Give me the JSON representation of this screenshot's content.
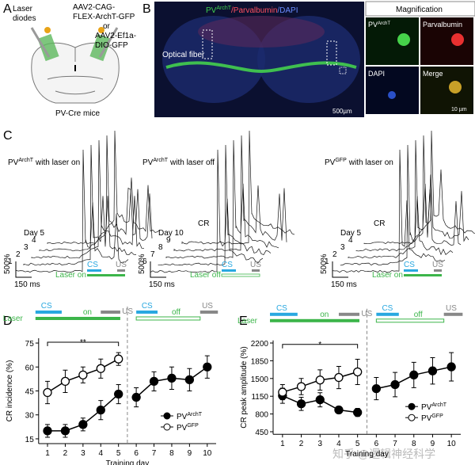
{
  "panels": {
    "a": "A",
    "b": "B",
    "c": "C",
    "d": "D",
    "e": "E"
  },
  "panel_a": {
    "laser": [
      "Laser",
      "diodes"
    ],
    "virus1": [
      "AAV2-CAG-",
      "FLEX-ArchT-GFP"
    ],
    "or": "or",
    "virus2": [
      "AAV2-Ef1a-",
      "DIO-GFP"
    ],
    "mice": "PV-Cre mice"
  },
  "panel_b": {
    "title": [
      "PV",
      "ArchT",
      "/Parvalbumin",
      "/DAPI"
    ],
    "magnification": "Magnification",
    "fiber": "Optical fiber",
    "scale": "500µm",
    "tiles": [
      {
        "label": "PV",
        "sup": "ArchT"
      },
      {
        "label": "Parvalbumin"
      },
      {
        "label": "DAPI"
      },
      {
        "label": "Merge"
      }
    ],
    "scale2": "10 µm"
  },
  "panel_c": {
    "traces": [
      {
        "title": "PV",
        "sup": "ArchT",
        "rest": "with laser on",
        "days": [
          "Day 5",
          "4",
          "3",
          "2",
          "1"
        ],
        "laser": "Laser on"
      },
      {
        "title": "PV",
        "sup": "ArchT",
        "rest": "with laser off",
        "days": [
          "Day 10",
          "9",
          "8",
          "7",
          "6"
        ],
        "laser": "Laser off"
      },
      {
        "title": "PV",
        "sup": "GFP",
        "rest": "with laser on",
        "days": [
          "Day 5",
          "4",
          "3",
          "2",
          "1"
        ],
        "laser": "Laser on"
      }
    ],
    "cr": "CR",
    "scale_y": "500%",
    "scale_x": "150 ms",
    "cs": "CS",
    "us": "US"
  },
  "watermark": "知乎 @逻辑神经科学",
  "chart_data": [
    {
      "type": "line",
      "xlabel": "Training day",
      "ylabel": "CR incidence (%)",
      "annotations": {
        "cs": "CS",
        "us": "US",
        "laser": "Laser",
        "on": "on",
        "off": "off",
        "significance": "**"
      },
      "x": [
        1,
        2,
        3,
        4,
        5,
        6,
        7,
        8,
        9,
        10
      ],
      "xticks": [
        1,
        2,
        3,
        4,
        5,
        6,
        7,
        8,
        9,
        10
      ],
      "xlim": [
        0.5,
        10.5
      ],
      "ylim": [
        12,
        78
      ],
      "yticks": [
        15,
        30,
        45,
        60,
        75
      ],
      "legend": "lower right",
      "series": [
        {
          "name": "PV",
          "sup": "ArchT",
          "marker": "filled",
          "color": "#000000",
          "values": [
            20,
            20,
            24,
            33,
            43,
            41,
            51,
            53,
            52,
            60
          ],
          "errors": [
            4,
            4,
            4,
            6,
            6,
            6,
            6,
            7,
            7,
            7
          ]
        },
        {
          "name": "PV",
          "sup": "GFP",
          "marker": "open",
          "color": "#000000",
          "values": [
            44,
            51,
            55,
            59,
            65,
            null,
            null,
            null,
            null,
            null
          ],
          "errors": [
            7,
            7,
            5,
            6,
            4,
            null,
            null,
            null,
            null,
            null
          ]
        }
      ]
    },
    {
      "type": "line",
      "xlabel": "Training day",
      "ylabel": "CR peak amplitude (%)",
      "annotations": {
        "cs": "CS",
        "us": "US",
        "laser": "Laser",
        "on": "on",
        "off": "off",
        "significance": "*"
      },
      "x": [
        1,
        2,
        3,
        4,
        5,
        6,
        7,
        8,
        9,
        10
      ],
      "xticks": [
        1,
        2,
        3,
        4,
        5,
        6,
        7,
        8,
        9,
        10
      ],
      "xlim": [
        0.5,
        10.5
      ],
      "ylim": [
        400,
        2250
      ],
      "yticks": [
        450,
        800,
        1150,
        1500,
        1850,
        2200
      ],
      "legend": "lower right",
      "series": [
        {
          "name": "PV",
          "sup": "ArchT",
          "marker": "filled",
          "color": "#000000",
          "values": [
            1160,
            1000,
            1080,
            880,
            830,
            1300,
            1380,
            1570,
            1650,
            1730
          ],
          "errors": [
            150,
            130,
            140,
            60,
            80,
            220,
            240,
            250,
            260,
            280
          ]
        },
        {
          "name": "PV",
          "sup": "GFP",
          "marker": "open",
          "color": "#000000",
          "values": [
            1230,
            1340,
            1470,
            1520,
            1630,
            null,
            null,
            null,
            null,
            null
          ],
          "errors": [
            150,
            160,
            200,
            220,
            250,
            null,
            null,
            null,
            null,
            null
          ]
        }
      ]
    }
  ]
}
